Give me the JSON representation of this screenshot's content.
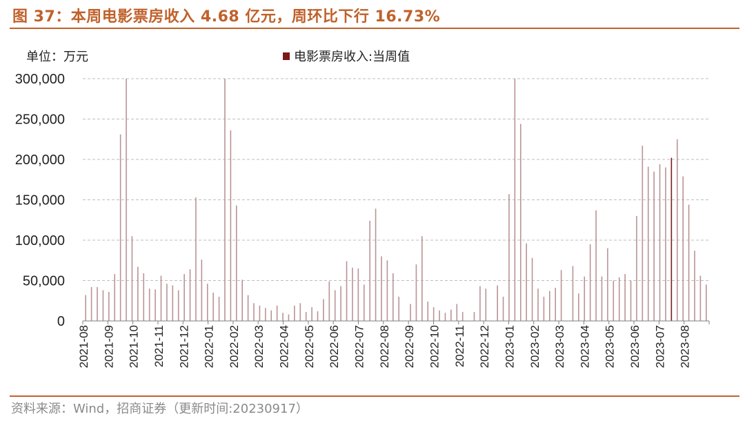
{
  "header": {
    "title": "图 37：本周电影票房收入 4.68 亿元，周环比下行 16.73%",
    "unit": "单位：万元",
    "source": "资料来源：Wind，招商证券（更新时间:20230917）"
  },
  "chart_data": {
    "type": "bar",
    "title": "",
    "xlabel": "",
    "ylabel": "",
    "ylim": [
      0,
      300000
    ],
    "yticks": [
      0,
      50000,
      100000,
      150000,
      200000,
      250000,
      300000
    ],
    "ytick_labels": [
      "0",
      "50,000",
      "100,000",
      "150,000",
      "200,000",
      "250,000",
      "300,000"
    ],
    "grid": "horizontal dashed",
    "legend_position": "top",
    "month_labels": [
      "2021-08",
      "2021-09",
      "2021-10",
      "2021-11",
      "2021-12",
      "2022-01",
      "2022-02",
      "2022-03",
      "2022-04",
      "2022-05",
      "2022-06",
      "2022-07",
      "2022-08",
      "2022-09",
      "2022-10",
      "2022-11",
      "2022-12",
      "2023-01",
      "2023-02",
      "2023-03",
      "2023-04",
      "2023-05",
      "2023-06",
      "2023-07",
      "2023-08"
    ],
    "series": [
      {
        "name": "电影票房收入:当周值",
        "color": "#ba9394",
        "highlight_color": "#7b1a1a",
        "highlight_index": 101,
        "values": [
          32000,
          42000,
          42000,
          38000,
          36000,
          58000,
          231000,
          300000,
          105000,
          67000,
          59000,
          40000,
          39000,
          56000,
          46000,
          44000,
          38000,
          58000,
          64000,
          153000,
          76000,
          46000,
          35000,
          30000,
          300000,
          236000,
          143000,
          51000,
          32000,
          22000,
          19000,
          16000,
          13000,
          19000,
          10000,
          8000,
          19000,
          22000,
          11000,
          17000,
          12000,
          27000,
          49000,
          38000,
          43000,
          74000,
          66000,
          65000,
          45000,
          124000,
          139000,
          80000,
          75000,
          59000,
          30000,
          0,
          21000,
          70000,
          105000,
          24000,
          17000,
          13000,
          10000,
          14000,
          21000,
          11000,
          0,
          11000,
          43000,
          40000,
          0,
          44000,
          30000,
          157000,
          300000,
          244000,
          96000,
          78000,
          40000,
          30000,
          37000,
          41000,
          63000,
          0,
          68000,
          34000,
          55000,
          95000,
          137000,
          55000,
          90000,
          50000,
          54000,
          58000,
          50000,
          130000,
          217000,
          191000,
          185000,
          194000,
          190000,
          202000,
          225000,
          179000,
          144000,
          87000,
          56000,
          45000
        ]
      }
    ]
  }
}
